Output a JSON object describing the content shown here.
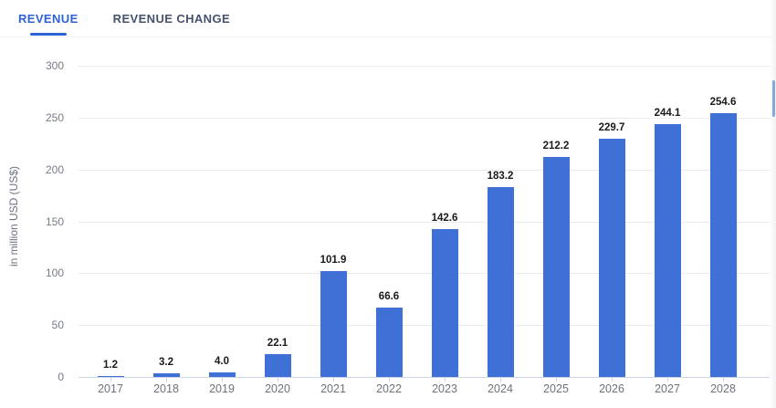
{
  "tabs": [
    {
      "label": "REVENUE",
      "active": true
    },
    {
      "label": "REVENUE CHANGE",
      "active": false
    }
  ],
  "chart_data": {
    "type": "bar",
    "categories": [
      "2017",
      "2018",
      "2019",
      "2020",
      "2021",
      "2022",
      "2023",
      "2024",
      "2025",
      "2026",
      "2027",
      "2028"
    ],
    "values": [
      1.2,
      3.2,
      4.0,
      22.1,
      101.9,
      66.6,
      142.6,
      183.2,
      212.2,
      229.7,
      244.1,
      254.6
    ],
    "value_labels": [
      "1.2",
      "3.2",
      "4.0",
      "22.1",
      "101.9",
      "66.6",
      "142.6",
      "183.2",
      "212.2",
      "229.7",
      "244.1",
      "254.6"
    ],
    "title": "",
    "xlabel": "",
    "ylabel": "in million USD (US$)",
    "yticks": [
      0,
      50,
      100,
      150,
      200,
      250,
      300
    ],
    "ylim": [
      0,
      300
    ],
    "grid": true,
    "legend": false,
    "bar_color": "#3e70d6"
  },
  "colors": {
    "bar": "#3e70d6",
    "active_tab": "#2f62d9",
    "inactive_tab": "#47526d",
    "tab_underline": "#2b64d9",
    "gridline": "#ebebee",
    "baseline": "#ccd4e6",
    "value_label": "#1a1a1a",
    "axis_label": "#6d727c",
    "scroll_thumb": "#8aa4dc"
  }
}
